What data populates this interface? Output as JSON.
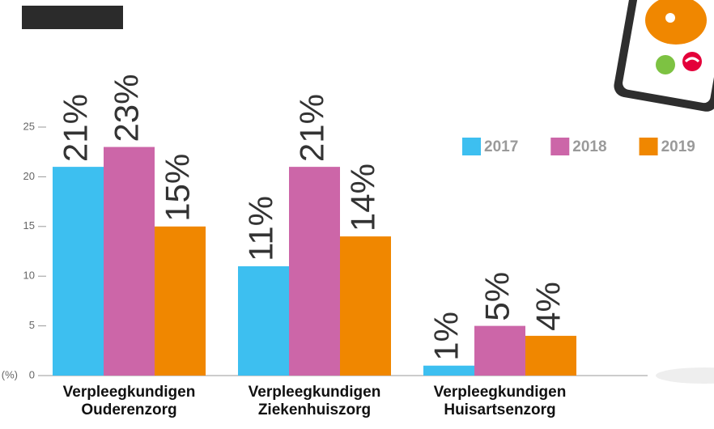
{
  "chart_data": {
    "type": "bar",
    "y_label": "(%)",
    "categories": [
      "Verpleegkundigen Ouderenzorg",
      "Verpleegkundigen Ziekenhuiszorg",
      "Verpleegkundigen Huisartsenzorg"
    ],
    "series": [
      {
        "name": "2017",
        "color": "#3dbff0",
        "values": [
          21,
          11,
          1
        ],
        "value_labels": [
          "21%",
          "11%",
          "1%"
        ]
      },
      {
        "name": "2018",
        "color": "#cc66a8",
        "values": [
          23,
          21,
          5
        ],
        "value_labels": [
          "23%",
          "21%",
          "5%"
        ]
      },
      {
        "name": "2019",
        "color": "#f08700",
        "values": [
          15,
          14,
          4
        ],
        "value_labels": [
          "15%",
          "14%",
          "4%"
        ]
      }
    ],
    "ylim": [
      0,
      25
    ],
    "yticks": [
      0,
      5,
      10,
      15,
      20,
      25
    ],
    "legend": "top-right"
  }
}
